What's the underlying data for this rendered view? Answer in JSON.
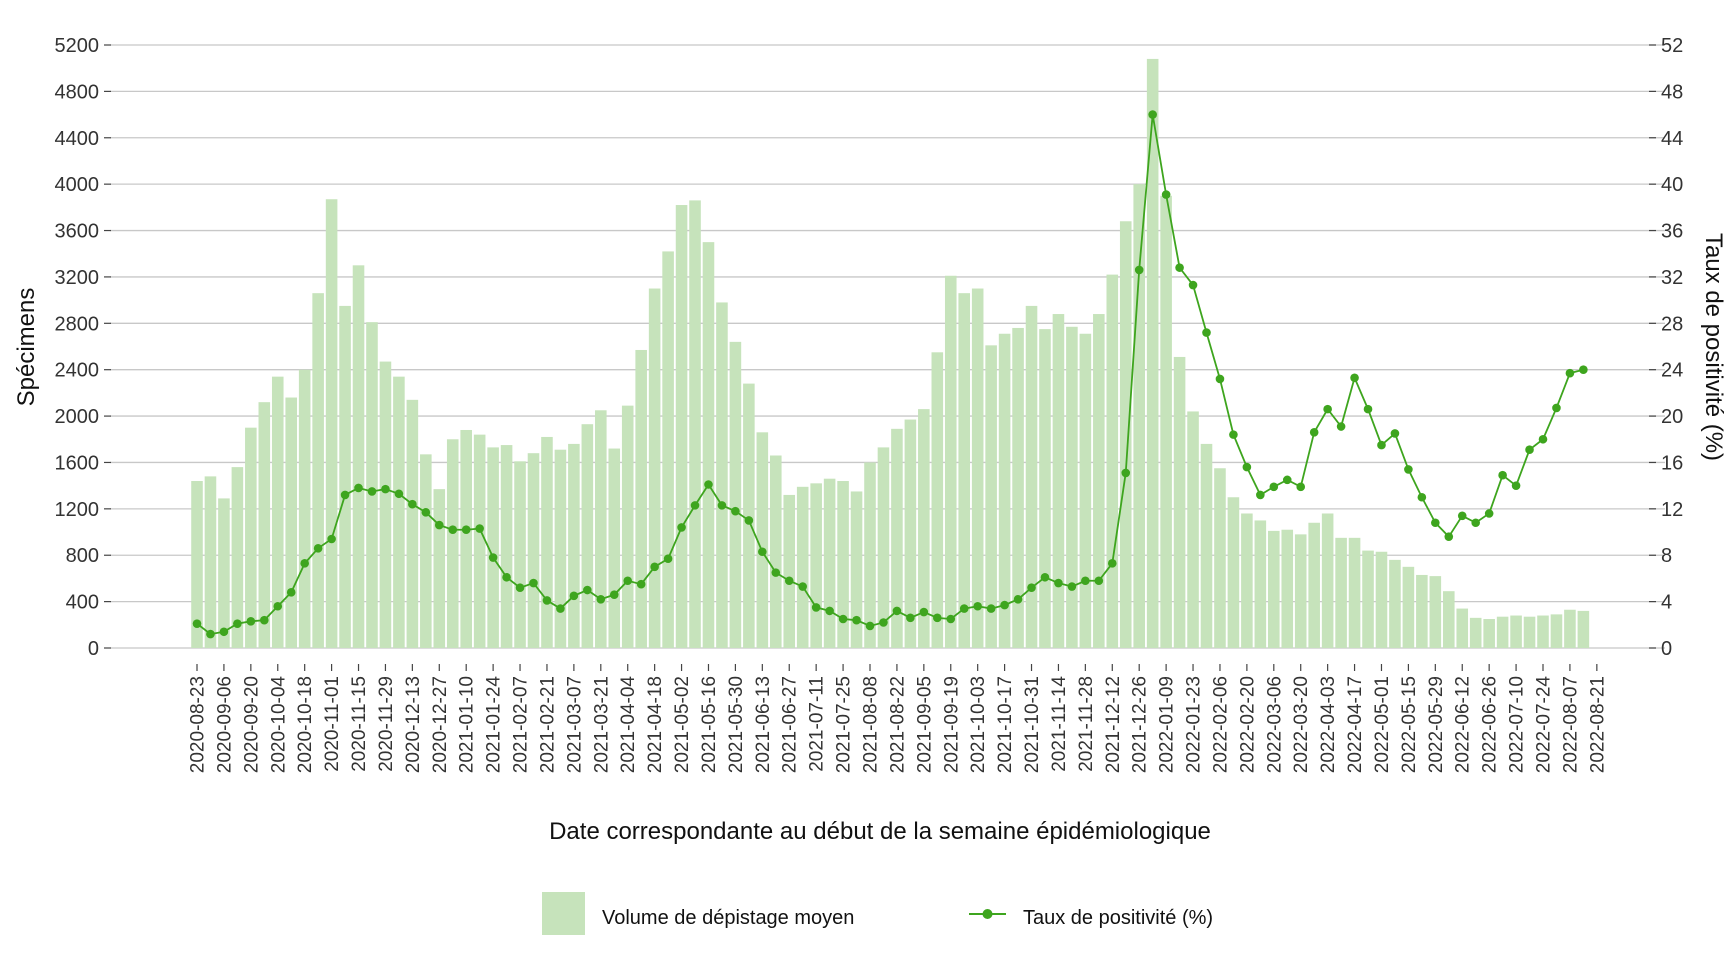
{
  "colors": {
    "bar": "#c6e3bb",
    "line": "#3ea51e",
    "grid": "#c8c8c8"
  },
  "chart_data": {
    "type": "bar",
    "xlabel": "Date correspondante au début de la semaine épidémiologique",
    "ylabel": "Spécimens",
    "y2label": "Taux de positivité (%)",
    "ylim": [
      0,
      5200
    ],
    "y2lim": [
      0,
      52
    ],
    "yticks": [
      0,
      400,
      800,
      1200,
      1600,
      2000,
      2400,
      2800,
      3200,
      3600,
      4000,
      4400,
      4800,
      5200
    ],
    "y2ticks": [
      0,
      4,
      8,
      12,
      16,
      20,
      24,
      28,
      32,
      36,
      40,
      44,
      48,
      52
    ],
    "grid": true,
    "legend_position": "bottom",
    "xtick_labels": [
      "2020-08-23",
      "2020-09-06",
      "2020-09-20",
      "2020-10-04",
      "2020-10-18",
      "2020-11-01",
      "2020-11-15",
      "2020-11-29",
      "2020-12-13",
      "2020-12-27",
      "2021-01-10",
      "2021-01-24",
      "2021-02-07",
      "2021-02-21",
      "2021-03-07",
      "2021-03-21",
      "2021-04-04",
      "2021-04-18",
      "2021-05-02",
      "2021-05-16",
      "2021-05-30",
      "2021-06-13",
      "2021-06-27",
      "2021-07-11",
      "2021-07-25",
      "2021-08-08",
      "2021-08-22",
      "2021-09-05",
      "2021-09-19",
      "2021-10-03",
      "2021-10-17",
      "2021-10-31",
      "2021-11-14",
      "2021-11-28",
      "2021-12-12",
      "2021-12-26",
      "2022-01-09",
      "2022-01-23",
      "2022-02-06",
      "2022-02-20",
      "2022-03-06",
      "2022-03-20",
      "2022-04-03",
      "2022-04-17",
      "2022-05-01",
      "2022-05-15",
      "2022-05-29",
      "2022-06-12",
      "2022-06-26",
      "2022-07-10",
      "2022-07-24",
      "2022-08-07",
      "2022-08-21"
    ],
    "series": [
      {
        "name": "Volume de dépistage moyen",
        "type": "bar",
        "axis": "left",
        "values": [
          1440,
          1480,
          1290,
          1560,
          1900,
          2120,
          2340,
          2160,
          2400,
          3060,
          3870,
          2950,
          3300,
          2810,
          2470,
          2340,
          2140,
          1670,
          1370,
          1800,
          1880,
          1840,
          1730,
          1750,
          1610,
          1680,
          1820,
          1710,
          1760,
          1930,
          2050,
          1720,
          2090,
          2570,
          3100,
          3420,
          3820,
          3860,
          3500,
          2980,
          2640,
          2280,
          1860,
          1660,
          1320,
          1390,
          1420,
          1460,
          1440,
          1350,
          1600,
          1730,
          1890,
          1970,
          2060,
          2550,
          3210,
          3060,
          3100,
          2610,
          2710,
          2760,
          2950,
          2750,
          2880,
          2770,
          2710,
          2880,
          3220,
          3680,
          4000,
          5080,
          3900,
          2510,
          2040,
          1760,
          1550,
          1300,
          1160,
          1100,
          1010,
          1020,
          980,
          1080,
          1160,
          950,
          950,
          840,
          830,
          760,
          700,
          630,
          620,
          490,
          340,
          260,
          250,
          270,
          280,
          270,
          280,
          290,
          330,
          320
        ],
        "color": "#c6e3bb"
      },
      {
        "name": "Taux de positivité (%)",
        "type": "line",
        "axis": "right",
        "values": [
          2.1,
          1.2,
          1.4,
          2.1,
          2.3,
          2.4,
          3.6,
          4.8,
          7.3,
          8.6,
          9.4,
          13.2,
          13.8,
          13.5,
          13.7,
          13.3,
          12.4,
          11.7,
          10.6,
          10.2,
          10.2,
          10.3,
          7.8,
          6.1,
          5.2,
          5.6,
          4.1,
          3.4,
          4.5,
          5.0,
          4.2,
          4.6,
          5.8,
          5.5,
          7.0,
          7.7,
          10.4,
          12.3,
          14.1,
          12.3,
          11.8,
          11.0,
          8.3,
          6.5,
          5.8,
          5.3,
          3.5,
          3.2,
          2.5,
          2.4,
          1.9,
          2.2,
          3.2,
          2.6,
          3.1,
          2.6,
          2.5,
          3.4,
          3.6,
          3.4,
          3.7,
          4.2,
          5.2,
          6.1,
          5.6,
          5.3,
          5.8,
          5.8,
          7.3,
          15.1,
          32.6,
          46.0,
          39.1,
          32.8,
          31.3,
          27.2,
          23.2,
          18.4,
          15.6,
          13.2,
          13.9,
          14.5,
          13.9,
          18.6,
          20.6,
          19.1,
          23.3,
          20.6,
          17.5,
          18.5,
          15.4,
          13.0,
          10.8,
          9.6,
          11.4,
          10.8,
          11.6,
          14.9,
          14.0,
          17.1,
          18.0,
          20.7,
          23.7,
          24.0
        ]
      }
    ]
  }
}
